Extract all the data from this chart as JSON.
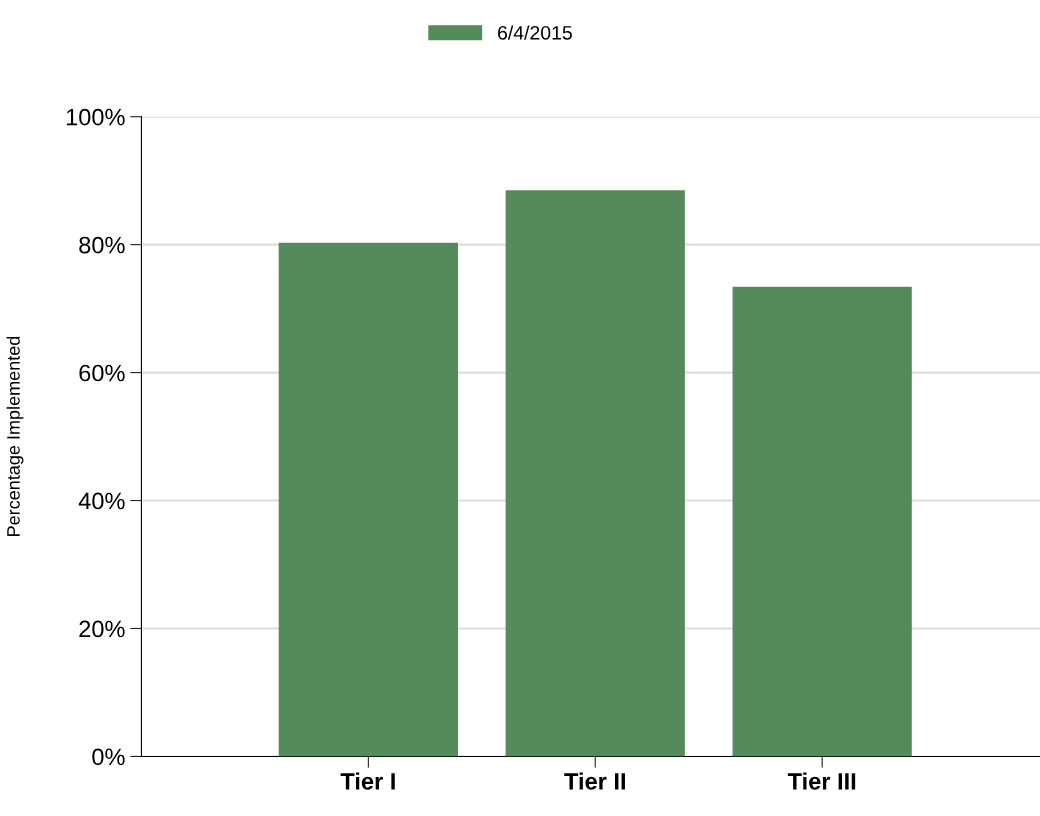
{
  "chart_data": {
    "type": "bar",
    "ylabel": "Percentage Implemented",
    "categories": [
      "Tier I",
      "Tier II",
      "Tier III"
    ],
    "series": [
      {
        "name": "6/4/2015",
        "color": "#548a5c",
        "values": [
          80.3,
          88.5,
          73.4
        ]
      }
    ],
    "ylim": [
      0,
      100
    ],
    "yticks": [
      {
        "value": 0,
        "label": "0%"
      },
      {
        "value": 20,
        "label": "20%"
      },
      {
        "value": 40,
        "label": "40%"
      },
      {
        "value": 60,
        "label": "60%"
      },
      {
        "value": 80,
        "label": "80%"
      },
      {
        "value": 100,
        "label": "100%"
      }
    ],
    "grid": "y",
    "legend": "top"
  }
}
